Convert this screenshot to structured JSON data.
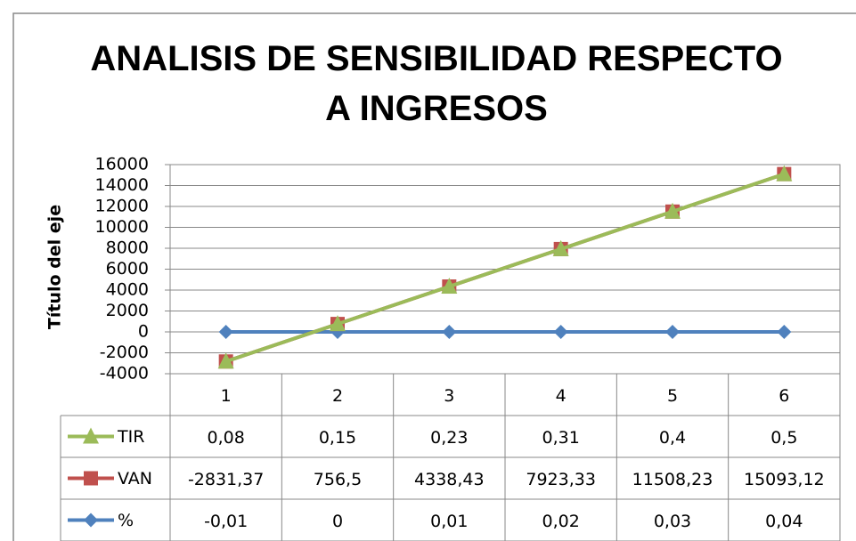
{
  "chart_data": {
    "type": "line",
    "stacked": true,
    "title": "ANALISIS DE SENSIBILIDAD RESPECTO A INGRESOS",
    "y_label": "Título del eje",
    "categories": [
      "1",
      "2",
      "3",
      "4",
      "5",
      "6"
    ],
    "series": [
      {
        "name": "TIR",
        "color": "#9bbb59",
        "marker": "triangle",
        "values": [
          0.08,
          0.15,
          0.23,
          0.31,
          0.4,
          0.5
        ],
        "value_labels": [
          "0,08",
          "0,15",
          "0,23",
          "0,31",
          "0,4",
          "0,5"
        ]
      },
      {
        "name": "VAN",
        "color": "#c0504d",
        "marker": "square",
        "values": [
          -2831.37,
          756.5,
          4338.43,
          7923.33,
          11508.23,
          15093.12
        ],
        "value_labels": [
          "-2831,37",
          "756,5",
          "4338,43",
          "7923,33",
          "11508,23",
          "15093,12"
        ]
      },
      {
        "name": "%",
        "color": "#4f81bd",
        "marker": "diamond",
        "values": [
          -0.01,
          0,
          0.01,
          0.02,
          0.03,
          0.04
        ],
        "value_labels": [
          "-0,01",
          "0",
          "0,01",
          "0,02",
          "0,03",
          "0,04"
        ]
      }
    ],
    "ylim": [
      -4000,
      16000
    ],
    "yticks": [
      -4000,
      -2000,
      0,
      2000,
      4000,
      6000,
      8000,
      10000,
      12000,
      14000,
      16000
    ],
    "grid": true
  }
}
